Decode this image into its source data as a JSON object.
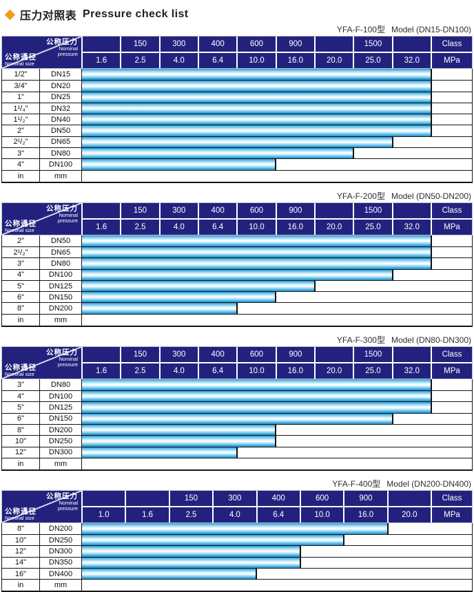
{
  "title": {
    "zh": "压力对照表",
    "en": "Pressure check list"
  },
  "icons": {
    "title_bullet": "diamond-icon"
  },
  "colors": {
    "header_navy": "#22227e",
    "bar_blue": "#2b96d1",
    "bar_highlight": "#ffffff",
    "accent_orange": "#f59a1e",
    "border_dark": "#141414"
  },
  "corner": {
    "top_zh": "公称压力",
    "top_en1": "Nominal",
    "top_en2": "pressure",
    "bottom_zh": "公称通径",
    "bottom_en": "Nominal size"
  },
  "tables": [
    {
      "model": "YFA-F-100型",
      "range": "Model (DN15-DN100)",
      "class_row": [
        "",
        "150",
        "300",
        "400",
        "600",
        "900",
        "",
        "1500",
        ""
      ],
      "class_unit": "Class",
      "mpa_row": [
        "1.6",
        "2.5",
        "4.0",
        "6.4",
        "10.0",
        "16.0",
        "20.0",
        "25.0",
        "32.0"
      ],
      "mpa_unit": "MPa",
      "rows": [
        {
          "inch": "1/2\"",
          "dn": "DN15",
          "span": 9,
          "max_mpa": "32.0"
        },
        {
          "inch": "3/4\"",
          "dn": "DN20",
          "span": 9,
          "max_mpa": "32.0"
        },
        {
          "inch": "1\"",
          "dn": "DN25",
          "span": 9,
          "max_mpa": "32.0"
        },
        {
          "inch": "1¹/₄\"",
          "dn": "DN32",
          "span": 9,
          "max_mpa": "32.0"
        },
        {
          "inch": "1¹/₂\"",
          "dn": "DN40",
          "span": 9,
          "max_mpa": "32.0"
        },
        {
          "inch": "2\"",
          "dn": "DN50",
          "span": 9,
          "max_mpa": "32.0"
        },
        {
          "inch": "2¹/₂\"",
          "dn": "DN65",
          "span": 8,
          "max_mpa": "25.0"
        },
        {
          "inch": "3\"",
          "dn": "DN80",
          "span": 7,
          "max_mpa": "20.0"
        },
        {
          "inch": "4\"",
          "dn": "DN100",
          "span": 5,
          "max_mpa": "10.0"
        }
      ],
      "unit_row": {
        "inch": "in",
        "dn": "mm"
      }
    },
    {
      "model": "YFA-F-200型",
      "range": "Model (DN50-DN200)",
      "class_row": [
        "",
        "150",
        "300",
        "400",
        "600",
        "900",
        "",
        "1500",
        ""
      ],
      "class_unit": "Class",
      "mpa_row": [
        "1.6",
        "2.5",
        "4.0",
        "6.4",
        "10.0",
        "16.0",
        "20.0",
        "25.0",
        "32.0"
      ],
      "mpa_unit": "MPa",
      "rows": [
        {
          "inch": "2\"",
          "dn": "DN50",
          "span": 9,
          "max_mpa": "32.0"
        },
        {
          "inch": "2¹/₂\"",
          "dn": "DN65",
          "span": 9,
          "max_mpa": "32.0"
        },
        {
          "inch": "3\"",
          "dn": "DN80",
          "span": 9,
          "max_mpa": "32.0"
        },
        {
          "inch": "4\"",
          "dn": "DN100",
          "span": 8,
          "max_mpa": "25.0"
        },
        {
          "inch": "5\"",
          "dn": "DN125",
          "span": 6,
          "max_mpa": "16.0"
        },
        {
          "inch": "6\"",
          "dn": "DN150",
          "span": 5,
          "max_mpa": "10.0"
        },
        {
          "inch": "8\"",
          "dn": "DN200",
          "span": 4,
          "max_mpa": "6.4"
        }
      ],
      "unit_row": {
        "inch": "in",
        "dn": "mm"
      }
    },
    {
      "model": "YFA-F-300型",
      "range": "Model (DN80-DN300)",
      "class_row": [
        "",
        "150",
        "300",
        "400",
        "600",
        "900",
        "",
        "1500",
        ""
      ],
      "class_unit": "Class",
      "mpa_row": [
        "1.6",
        "2.5",
        "4.0",
        "6.4",
        "10.0",
        "16.0",
        "20.0",
        "25.0",
        "32.0"
      ],
      "mpa_unit": "MPa",
      "rows": [
        {
          "inch": "3\"",
          "dn": "DN80",
          "span": 9,
          "max_mpa": "32.0"
        },
        {
          "inch": "4\"",
          "dn": "DN100",
          "span": 9,
          "max_mpa": "32.0"
        },
        {
          "inch": "5\"",
          "dn": "DN125",
          "span": 9,
          "max_mpa": "32.0"
        },
        {
          "inch": "6\"",
          "dn": "DN150",
          "span": 8,
          "max_mpa": "25.0"
        },
        {
          "inch": "8\"",
          "dn": "DN200",
          "span": 5,
          "max_mpa": "10.0"
        },
        {
          "inch": "10\"",
          "dn": "DN250",
          "span": 5,
          "max_mpa": "10.0"
        },
        {
          "inch": "12\"",
          "dn": "DN300",
          "span": 4,
          "max_mpa": "6.4"
        }
      ],
      "unit_row": {
        "inch": "in",
        "dn": "mm"
      }
    },
    {
      "model": "YFA-F-400型",
      "range": "Model (DN200-DN400)",
      "class_row": [
        "",
        "",
        "150",
        "300",
        "400",
        "600",
        "900",
        ""
      ],
      "class_unit": "Class",
      "mpa_row": [
        "1.0",
        "1.6",
        "2.5",
        "4.0",
        "6.4",
        "10.0",
        "16.0",
        "20.0"
      ],
      "mpa_unit": "MPa",
      "rows": [
        {
          "inch": "8\"",
          "dn": "DN200",
          "span": 7,
          "max_mpa": "16.0"
        },
        {
          "inch": "10\"",
          "dn": "DN250",
          "span": 6,
          "max_mpa": "10.0"
        },
        {
          "inch": "12\"",
          "dn": "DN300",
          "span": 5,
          "max_mpa": "6.4"
        },
        {
          "inch": "14\"",
          "dn": "DN350",
          "span": 5,
          "max_mpa": "6.4"
        },
        {
          "inch": "16\"",
          "dn": "DN400",
          "span": 4,
          "max_mpa": "4.0"
        }
      ],
      "unit_row": {
        "inch": "in",
        "dn": "mm"
      }
    }
  ]
}
